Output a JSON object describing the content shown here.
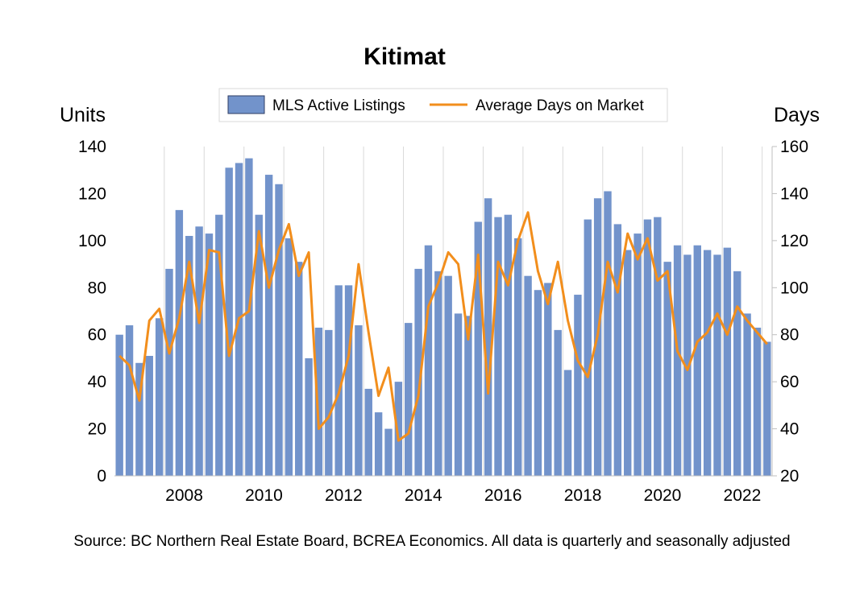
{
  "chart_data": {
    "type": "bar",
    "title": "Kitimat",
    "ylabel_left": "Units",
    "ylabel_right": "Days",
    "ylim_left": [
      0,
      140
    ],
    "ylim_right": [
      20,
      160
    ],
    "yticks_left": [
      "0",
      "20",
      "40",
      "60",
      "80",
      "100",
      "120",
      "140"
    ],
    "yticks_right": [
      "20",
      "40",
      "60",
      "80",
      "100",
      "120",
      "140",
      "160"
    ],
    "x_labels": [
      "2008",
      "2010",
      "2012",
      "2014",
      "2016",
      "2018",
      "2020",
      "2022"
    ],
    "grid": "vertical",
    "legend_position": "top-center",
    "quarters_start": "2006 Q4",
    "series": [
      {
        "name": "MLS Active Listings",
        "type": "bar",
        "axis": "left",
        "color": "#7293CB",
        "values": [
          60,
          64,
          48,
          51,
          67,
          88,
          113,
          102,
          106,
          103,
          111,
          131,
          133,
          135,
          111,
          128,
          124,
          101,
          91,
          50,
          63,
          62,
          81,
          81,
          64,
          37,
          27,
          20,
          40,
          65,
          88,
          98,
          87,
          85,
          69,
          68,
          108,
          118,
          110,
          111,
          101,
          85,
          79,
          82,
          62,
          45,
          77,
          109,
          118,
          121,
          107,
          96,
          103,
          109,
          110,
          91,
          98,
          94,
          98,
          96,
          94,
          97,
          87,
          69,
          63,
          57
        ]
      },
      {
        "name": "Average Days on Market",
        "type": "line",
        "axis": "right",
        "color": "#F28E1C",
        "values": [
          71,
          67,
          52,
          86,
          91,
          72,
          87,
          111,
          85,
          116,
          115,
          71,
          87,
          90,
          124,
          100,
          116,
          127,
          105,
          115,
          40,
          45,
          55,
          71,
          110,
          81,
          54,
          66,
          35,
          38,
          54,
          92,
          102,
          115,
          110,
          78,
          114,
          55,
          111,
          101,
          120,
          132,
          107,
          93,
          111,
          86,
          69,
          62,
          80,
          111,
          98,
          123,
          112,
          121,
          103,
          107,
          73,
          65,
          77,
          81,
          89,
          80,
          92,
          86,
          81,
          76
        ]
      }
    ]
  },
  "footer": {
    "source": "Source: BC Northern Real Estate Board, BCREA Economics. All data is quarterly and seasonally adjusted"
  }
}
